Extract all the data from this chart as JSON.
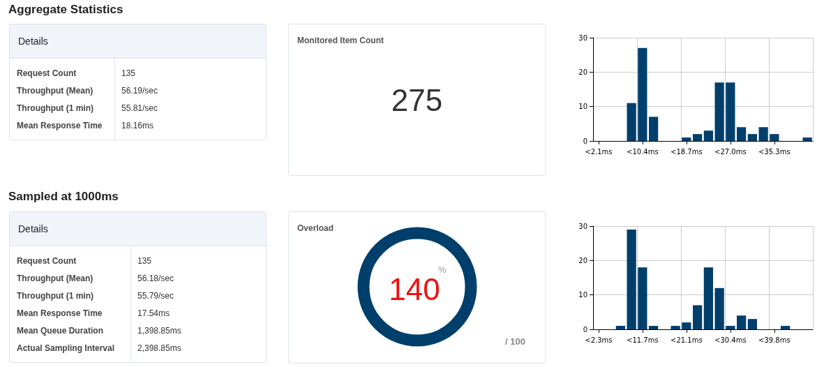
{
  "chart_data": [
    {
      "type": "other",
      "title": "Aggregate Statistics",
      "subtitle": "Details",
      "annotations": [
        "Request Count",
        "135",
        "Throughput (Mean)",
        "56.19/sec",
        "Throughput (1 min)",
        "55.81/sec",
        "Mean Response Time",
        "18.16ms"
      ]
    },
    {
      "type": "other",
      "title": "Monitored Item Count",
      "annotations": [
        "275"
      ]
    },
    {
      "type": "bar",
      "categories": [
        "<2.1ms",
        null,
        null,
        null,
        "<10.4ms",
        null,
        null,
        null,
        "<18.7ms",
        null,
        null,
        null,
        "<27.0ms",
        null,
        null,
        null,
        "<35.3ms",
        null,
        null,
        null
      ],
      "values": [
        0,
        0,
        0,
        11,
        27,
        7,
        0,
        0,
        1,
        2,
        3,
        17,
        17,
        4,
        2,
        4,
        2,
        0,
        0,
        1
      ],
      "color": "#003f6b",
      "ylim": [
        0,
        30
      ],
      "yticks": [
        0,
        10,
        20,
        30
      ],
      "grid": true
    },
    {
      "type": "other",
      "title": "Sampled at 1000ms",
      "subtitle": "Details",
      "annotations": [
        "Request Count",
        "135",
        "Throughput (Mean)",
        "56.18/sec",
        "Throughput (1 min)",
        "55.79/sec",
        "Mean Response Time",
        "17.54ms",
        "Mean Queue Duration",
        "1,398.85ms",
        "Actual Sampling Interval",
        "2,398.85ms"
      ]
    },
    {
      "type": "other",
      "title": "Overload",
      "color": "#003f6b",
      "annotations": [
        "140",
        "%",
        "/ 100"
      ]
    },
    {
      "type": "bar",
      "categories": [
        "<2.3ms",
        null,
        null,
        null,
        "<11.7ms",
        null,
        null,
        null,
        "<21.1ms",
        null,
        null,
        null,
        "<30.4ms",
        null,
        null,
        null,
        "<39.8ms",
        null,
        null,
        null
      ],
      "values": [
        0,
        0,
        1,
        29,
        18,
        1,
        0,
        1,
        2,
        7,
        18,
        12,
        1,
        4,
        3,
        0,
        0,
        1,
        0,
        0
      ],
      "color": "#003f6b",
      "ylim": [
        0,
        30
      ],
      "yticks": [
        0,
        10,
        20,
        30
      ],
      "grid": true
    }
  ]
}
